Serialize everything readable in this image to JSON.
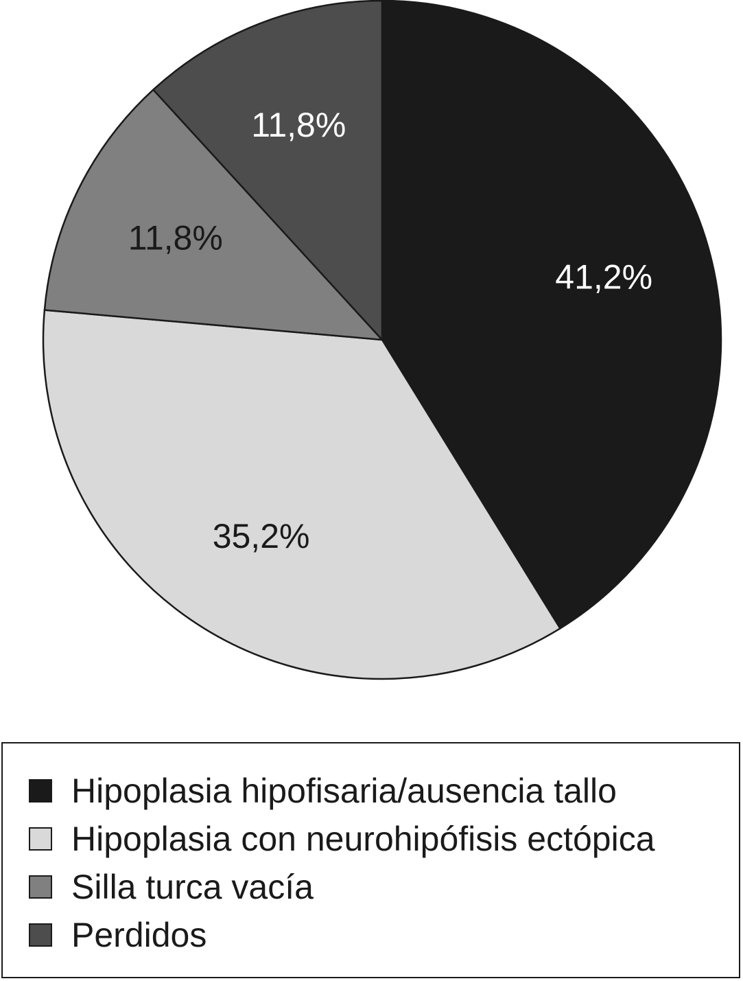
{
  "chart_data": {
    "type": "pie",
    "slices": [
      {
        "label": "Hipoplasia hipofisaria/ausencia tallo",
        "value": 41.2,
        "display": "41,2%",
        "color": "#1a1a1a",
        "text_color": "#ffffff"
      },
      {
        "label": "Hipoplasia con neurohipófisis ectópica",
        "value": 35.2,
        "display": "35,2%",
        "color": "#d9d9d9",
        "text_color": "#1a1a1a"
      },
      {
        "label": "Silla turca vacía",
        "value": 11.8,
        "display": "11,8%",
        "color": "#808080",
        "text_color": "#1a1a1a"
      },
      {
        "label": "Perdidos",
        "value": 11.8,
        "display": "11,8%",
        "color": "#4d4d4d",
        "text_color": "#ffffff"
      }
    ],
    "start": "12 o'clock",
    "direction": "clockwise",
    "legend": "bottom"
  },
  "legend": {
    "items": [
      {
        "label": "Hipoplasia hipofisaria/ausencia tallo",
        "color": "#1a1a1a"
      },
      {
        "label": "Hipoplasia con neurohipófisis ectópica",
        "color": "#d9d9d9"
      },
      {
        "label": "Silla turca vacía",
        "color": "#808080"
      },
      {
        "label": "Perdidos",
        "color": "#4d4d4d"
      }
    ]
  }
}
